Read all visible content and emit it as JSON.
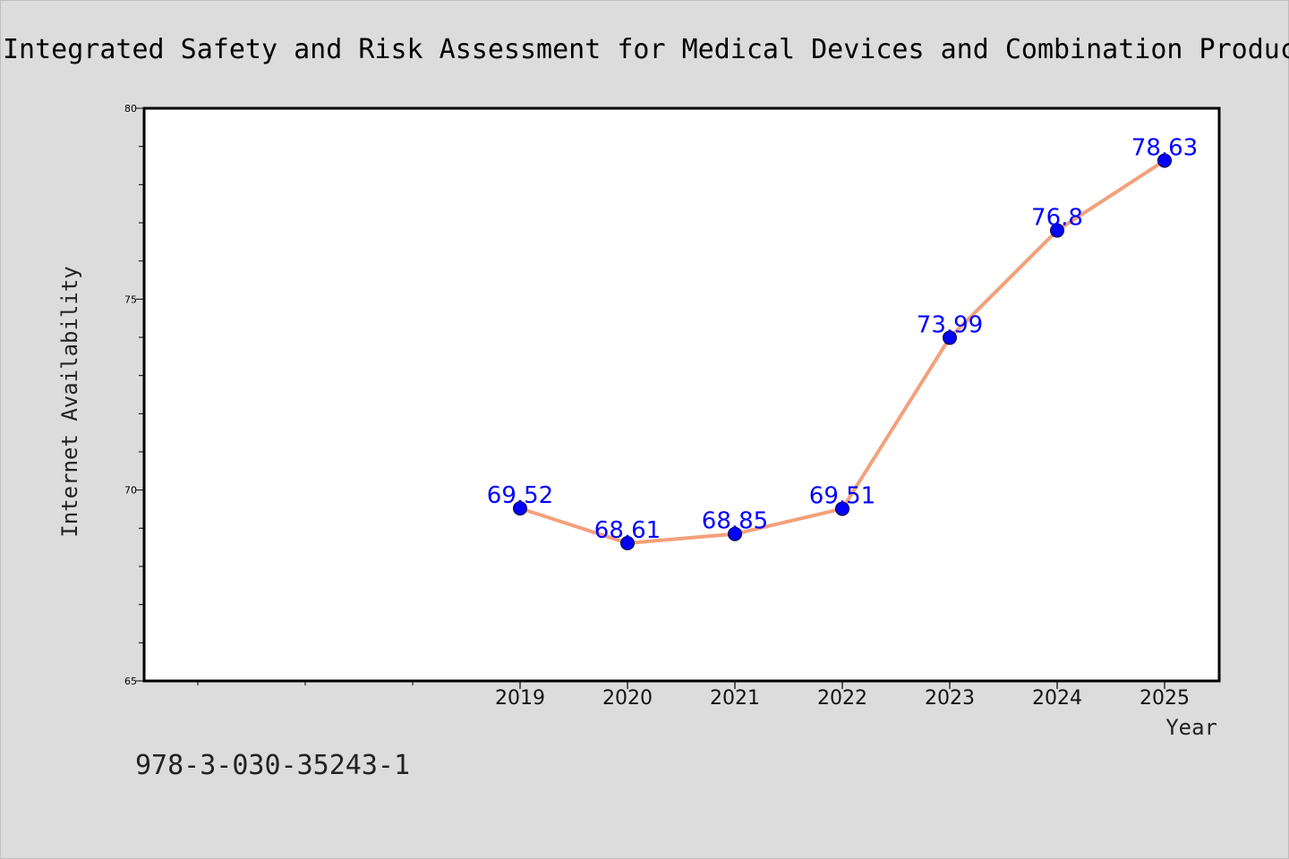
{
  "chart_data": {
    "type": "line",
    "title": "Integrated Safety and Risk Assessment for Medical Devices and Combination Products",
    "xlabel": "Year",
    "ylabel": "Internet Availability",
    "x": [
      "2019",
      "2020",
      "2021",
      "2022",
      "2023",
      "2024",
      "2025"
    ],
    "series": [
      {
        "values": [
          69.52,
          68.61,
          68.85,
          69.51,
          73.99,
          76.8,
          78.63
        ],
        "data_labels": [
          "69.52",
          "68.61",
          "68.85",
          "69.51",
          "73.99",
          "76.8",
          "78.63"
        ],
        "line_color": "#f4a07c",
        "marker_color": "#0000ff"
      }
    ],
    "ylim": [
      65,
      80
    ],
    "y_ticks": [
      "65",
      "70",
      "75",
      "80"
    ],
    "y_minor_step": 1,
    "x_minor_ticks_before_first": 3,
    "label_color": "#0000ff",
    "grid": false
  },
  "footer": {
    "code": "978-3-030-35243-1"
  }
}
